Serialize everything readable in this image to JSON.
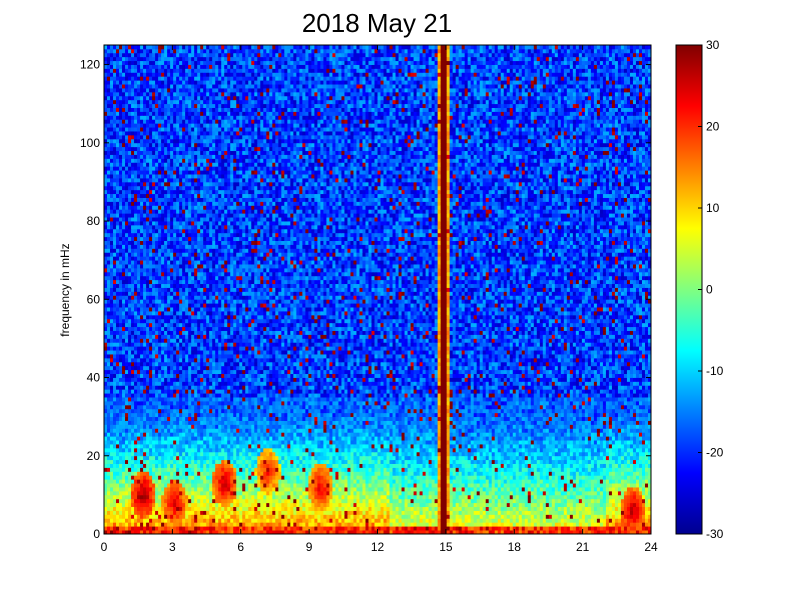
{
  "chart_data": {
    "type": "heatmap",
    "title": "2018 May 21",
    "xlabel": "",
    "ylabel": "frequency in mHz",
    "x_range": [
      0,
      24
    ],
    "y_range": [
      0,
      125
    ],
    "x_ticks": [
      0,
      3,
      6,
      9,
      12,
      15,
      18,
      21,
      24
    ],
    "y_ticks": [
      0,
      20,
      40,
      60,
      80,
      100,
      120
    ],
    "colorbar": {
      "range": [
        -30,
        30
      ],
      "ticks": [
        30,
        20,
        10,
        0,
        -10,
        -20,
        -30
      ],
      "colormap": "jet"
    },
    "features": {
      "background_level": -19,
      "low_freq_band": {
        "freq_max": 35,
        "peak_level": 10
      },
      "vertical_spike": {
        "hour": 14.9,
        "level": 30
      },
      "hot_spots": [
        {
          "hour": 1.7,
          "freq": 10,
          "level": 28
        },
        {
          "hour": 3.1,
          "freq": 8,
          "level": 25
        },
        {
          "hour": 5.3,
          "freq": 13,
          "level": 26
        },
        {
          "hour": 7.2,
          "freq": 16,
          "level": 22
        },
        {
          "hour": 9.5,
          "freq": 12,
          "level": 24
        },
        {
          "hour": 23.2,
          "freq": 6,
          "level": 27
        }
      ]
    }
  }
}
